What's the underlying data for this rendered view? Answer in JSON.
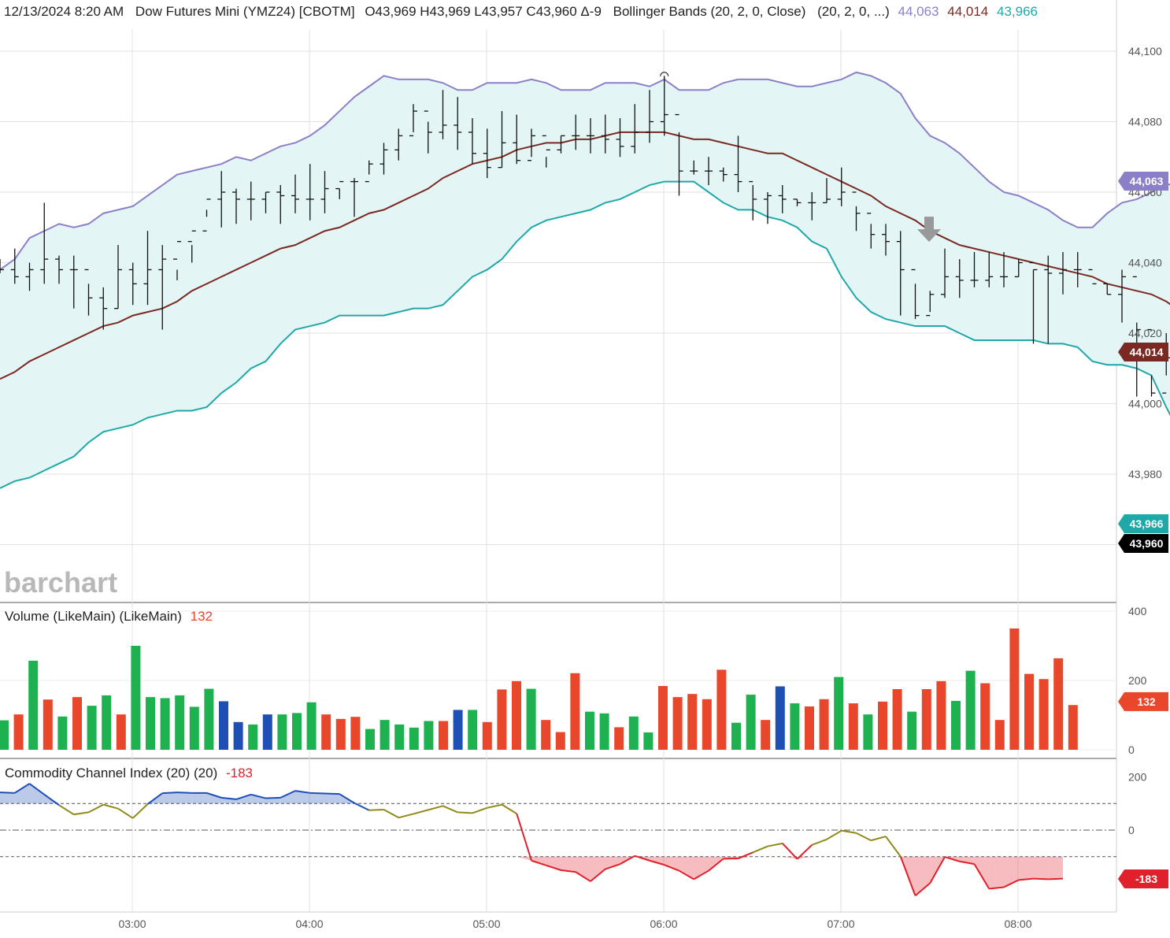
{
  "header": {
    "datetime": "12/13/2024 8:20 AM",
    "symbol": "Dow Futures Mini (YMZ24) [CBOTM]",
    "ohlc": "O43,969  H43,969  L43,957  C43,960  Δ-9",
    "study": "Bollinger Bands (20, 2, 0, Close)",
    "study_params": "(20, 2, 0, ...)",
    "upper_value": "44,063",
    "middle_value": "44,014",
    "lower_value": "43,966"
  },
  "logo": "barchart",
  "volume_header": {
    "title": "Volume (LikeMain)  (LikeMain)",
    "value": "132"
  },
  "cci_header": {
    "title": "Commodity Channel Index (20)  (20)",
    "value": "-183"
  },
  "price_axis_ticks": [
    "44,100",
    "44,080",
    "44,060",
    "44,040",
    "44,020",
    "44,000",
    "43,980"
  ],
  "volume_axis_ticks": [
    "400",
    "200",
    "0"
  ],
  "cci_axis_ticks": [
    "200",
    "0"
  ],
  "time_ticks": [
    "03:00",
    "04:00",
    "05:00",
    "06:00",
    "07:00",
    "08:00"
  ],
  "price_tags": [
    {
      "label": "44,063",
      "value": 44063,
      "color": "#8b80c8"
    },
    {
      "label": "44,014",
      "value": 44014,
      "color": "#7a2a22"
    },
    {
      "label": "43,966",
      "value": 43966,
      "color": "#1fa8a8"
    },
    {
      "label": "43,960",
      "value": 43960,
      "color": "#000000"
    }
  ],
  "volume_tag": {
    "label": "132",
    "value": 132,
    "color": "#e8472c"
  },
  "cci_tag": {
    "label": "-183",
    "value": -183,
    "color": "#e0202a"
  },
  "colors": {
    "upper_band": "#8b80c8",
    "middle_band": "#7a2a22",
    "lower_band": "#1fa8a8",
    "band_fill": "#e4f5f5",
    "vol_up": "#1eb150",
    "vol_down": "#e8472c",
    "vol_neutral": "#1d4fb5",
    "cci_line": "#8f8a1a",
    "cci_above": "#1d4fb5",
    "cci_below": "#e0202a"
  },
  "chart_data": [
    {
      "type": "ohlc",
      "title": "Dow Futures Mini (YMZ24)",
      "x_start": "02:20",
      "bar_interval_minutes": 5,
      "x_ticks": [
        "03:00",
        "04:00",
        "05:00",
        "06:00",
        "07:00",
        "08:00"
      ],
      "ylim": [
        43950,
        44105
      ],
      "markers": [
        {
          "type": "sell-arrow",
          "time": "07:30",
          "price": 44045
        }
      ],
      "highs": [
        44041,
        44044,
        44040,
        44057,
        44042,
        44042,
        44034,
        44033,
        44045,
        44040,
        44049,
        44045,
        44038,
        44040,
        44055,
        44066,
        44061,
        44063,
        44060,
        44062,
        44065,
        44068,
        44066,
        44061,
        44064,
        44069,
        44074,
        44078,
        44085,
        44080,
        44089,
        44087,
        44081,
        44078,
        44083,
        44082,
        44078,
        44070,
        44076,
        44082,
        44081,
        44082,
        44081,
        44085,
        44089,
        44093,
        44077,
        44069,
        44070,
        44067,
        44076,
        44062,
        44060,
        44062,
        44058,
        44060,
        44064,
        44067,
        44056,
        44051,
        44051,
        44049,
        44034,
        44032,
        44044,
        44041,
        44043,
        44043,
        44043,
        44041,
        44038,
        44042,
        44043,
        44043,
        44036,
        44034,
        44038,
        44023,
        44008,
        44020,
        44028,
        44028,
        44020,
        43990,
        43990,
        43983,
        43982,
        43968
      ],
      "lows": [
        44037,
        44034,
        44032,
        44034,
        44034,
        44027,
        44025,
        44021,
        44027,
        44028,
        44028,
        44021,
        44035,
        44045,
        44053,
        44050,
        44051,
        44052,
        44054,
        44051,
        44054,
        44052,
        44054,
        44058,
        44053,
        44065,
        44065,
        44069,
        44077,
        44071,
        44075,
        44072,
        44068,
        44064,
        44067,
        44068,
        44070,
        44067,
        44071,
        44072,
        44071,
        44071,
        44070,
        44071,
        44074,
        44076,
        44059,
        44065,
        44062,
        44063,
        44060,
        44052,
        44051,
        44054,
        44056,
        44052,
        44057,
        44056,
        44049,
        44044,
        44042,
        44025,
        44024,
        44026,
        44030,
        44030,
        44033,
        44033,
        44033,
        44036,
        44017,
        44017,
        44031,
        44033,
        44036,
        44031,
        44023,
        44002,
        44002,
        44008,
        44010,
        44008,
        44012,
        43992,
        43977,
        43977,
        43969,
        43957
      ],
      "closes": [
        44038,
        44036,
        44038,
        44041,
        44038,
        44038,
        44030,
        44027,
        44038,
        44034,
        44038,
        44041,
        44046,
        44049,
        44058,
        44060,
        44058,
        44058,
        44060,
        44059,
        44058,
        44058,
        44061,
        44063,
        44063,
        44068,
        44072,
        44076,
        44083,
        44077,
        44079,
        44077,
        44071,
        44067,
        44074,
        44069,
        44076,
        44072,
        44076,
        44076,
        44076,
        44075,
        44073,
        44077,
        44080,
        44082,
        44066,
        44066,
        44066,
        44065,
        44063,
        44058,
        44059,
        44058,
        44057,
        44057,
        44058,
        44060,
        44054,
        44048,
        44046,
        44038,
        44025,
        44031,
        44036,
        44035,
        44035,
        44036,
        44036,
        44040,
        44038,
        44037,
        44038,
        44038,
        44034,
        44031,
        44036,
        44021,
        44003,
        44013,
        44011,
        44010,
        44014,
        43988,
        43989,
        43981,
        43967,
        43960
      ]
    },
    {
      "type": "line",
      "title": "Bollinger Bands (20, 2, 0, Close)",
      "series": [
        {
          "name": "upper",
          "values": [
            44038,
            44041,
            44047,
            44049,
            44051,
            44050,
            44051,
            44054,
            44055,
            44056,
            44059,
            44062,
            44065,
            44066,
            44067,
            44068,
            44070,
            44069,
            44071,
            44073,
            44074,
            44076,
            44079,
            44083,
            44087,
            44090,
            44093,
            44092,
            44092,
            44092,
            44091,
            44089,
            44089,
            44091,
            44091,
            44091,
            44092,
            44091,
            44089,
            44089,
            44089,
            44091,
            44091,
            44091,
            44090,
            44092,
            44089,
            44089,
            44089,
            44091,
            44092,
            44092,
            44092,
            44091,
            44090,
            44090,
            44091,
            44092,
            44094,
            44093,
            44091,
            44088,
            44081,
            44076,
            44074,
            44071,
            44067,
            44063,
            44060,
            44059,
            44057,
            44055,
            44052,
            44050,
            44050,
            44054,
            44057,
            44058,
            44060,
            44062,
            44063
          ],
          "start_index": 0
        },
        {
          "name": "middle",
          "values": [
            44007,
            44009,
            44012,
            44014,
            44016,
            44018,
            44020,
            44022,
            44023,
            44025,
            44026,
            44027,
            44029,
            44032,
            44034,
            44036,
            44038,
            44040,
            44042,
            44044,
            44045,
            44047,
            44049,
            44050,
            44052,
            44054,
            44055,
            44057,
            44059,
            44061,
            44064,
            44066,
            44068,
            44069,
            44070,
            44072,
            44073,
            44074,
            44074,
            44075,
            44075,
            44076,
            44077,
            44077,
            44077,
            44077,
            44076,
            44075,
            44075,
            44074,
            44073,
            44072,
            44071,
            44071,
            44069,
            44067,
            44065,
            44063,
            44061,
            44059,
            44056,
            44054,
            44052,
            44049,
            44047,
            44045,
            44044,
            44043,
            44042,
            44041,
            44040,
            44039,
            44038,
            44037,
            44036,
            44034,
            44033,
            44032,
            44031,
            44029,
            44026,
            44022,
            44019,
            44016,
            44014
          ],
          "start_index": 0
        },
        {
          "name": "lower",
          "values": [
            43976,
            43978,
            43979,
            43981,
            43983,
            43985,
            43989,
            43992,
            43993,
            43994,
            43996,
            43997,
            43998,
            43998,
            43999,
            44003,
            44006,
            44010,
            44012,
            44017,
            44021,
            44022,
            44023,
            44025,
            44025,
            44025,
            44025,
            44026,
            44027,
            44027,
            44028,
            44032,
            44036,
            44038,
            44041,
            44046,
            44050,
            44052,
            44053,
            44054,
            44055,
            44057,
            44058,
            44060,
            44062,
            44063,
            44063,
            44063,
            44060,
            44057,
            44055,
            44055,
            44053,
            44052,
            44050,
            44046,
            44044,
            44036,
            44030,
            44026,
            44024,
            44023,
            44022,
            44022,
            44022,
            44020,
            44018,
            44018,
            44018,
            44018,
            44018,
            44017,
            44017,
            44016,
            44012,
            44011,
            44011,
            44010,
            44008,
            43999,
            43991,
            43985,
            43978,
            43971,
            43966
          ],
          "start_index": 0
        }
      ]
    },
    {
      "type": "bar",
      "title": "Volume (LikeMain)",
      "ylim": [
        0,
        400
      ],
      "values": [
        85,
        102,
        257,
        145,
        96,
        152,
        127,
        157,
        102,
        300,
        152,
        149,
        157,
        124,
        176,
        140,
        80,
        73,
        102,
        102,
        106,
        137,
        102,
        89,
        95,
        60,
        86,
        73,
        64,
        83,
        83,
        115,
        115,
        80,
        174,
        198,
        176,
        86,
        51,
        221,
        110,
        105,
        65,
        96,
        50,
        184,
        152,
        161,
        146,
        231,
        78,
        159,
        86,
        183,
        134,
        125,
        146,
        210,
        134,
        102,
        139,
        175,
        110,
        175,
        198,
        141,
        228,
        192,
        86,
        350,
        219,
        204,
        264,
        129
      ],
      "directions": [
        "up",
        "down",
        "up",
        "down",
        "up",
        "down",
        "up",
        "up",
        "down",
        "up",
        "up",
        "up",
        "up",
        "up",
        "up",
        "neutral",
        "neutral",
        "up",
        "neutral",
        "up",
        "up",
        "up",
        "down",
        "down",
        "down",
        "up",
        "up",
        "up",
        "up",
        "up",
        "down",
        "neutral",
        "up",
        "down",
        "down",
        "down",
        "up",
        "down",
        "down",
        "down",
        "up",
        "up",
        "down",
        "up",
        "up",
        "down",
        "down",
        "down",
        "down",
        "down",
        "up",
        "up",
        "down",
        "neutral",
        "up",
        "down",
        "down",
        "up",
        "down",
        "up",
        "down",
        "down",
        "up",
        "down",
        "down",
        "up",
        "up",
        "down",
        "down",
        "down",
        "down",
        "down",
        "down",
        "down"
      ]
    },
    {
      "type": "line",
      "title": "Commodity Channel Index (20)",
      "ylim": [
        -300,
        300
      ],
      "ref_lines": [
        100,
        0,
        -100
      ],
      "values": [
        142,
        140,
        175,
        134,
        94,
        59,
        67,
        96,
        81,
        45,
        98,
        139,
        142,
        140,
        140,
        122,
        116,
        134,
        120,
        122,
        148,
        140,
        138,
        136,
        102,
        75,
        77,
        47,
        61,
        76,
        91,
        67,
        64,
        84,
        96,
        62,
        -115,
        -133,
        -151,
        -158,
        -193,
        -147,
        -128,
        -97,
        -115,
        -131,
        -153,
        -185,
        -153,
        -108,
        -107,
        -84,
        -61,
        -50,
        -109,
        -56,
        -35,
        -2,
        -11,
        -39,
        -24,
        -99,
        -247,
        -200,
        -101,
        -118,
        -128,
        -221,
        -215,
        -188,
        -183,
        -185,
        -183
      ]
    }
  ]
}
